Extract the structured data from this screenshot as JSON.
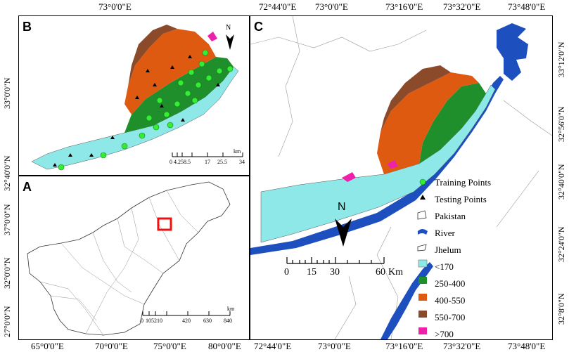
{
  "panels": {
    "a": {
      "label": "A",
      "top_axis": [],
      "bottom_axis": [
        "65°0'0\"E",
        "70°0'0\"E",
        "75°0'0\"E",
        "80°0'0\"E"
      ],
      "left_axis": [
        "37°0'0\"N",
        "32°0'0\"N",
        "27°0'0\"N"
      ],
      "scale_ticks": [
        "0",
        "105",
        "210",
        "420",
        "630",
        "840"
      ],
      "scale_unit": "km"
    },
    "b": {
      "label": "B",
      "top_axis": [
        "73°0'0\"E"
      ],
      "left_axis": [
        "33°0'0\"N",
        "32°40'0\"N"
      ],
      "scale_ticks": [
        "0",
        "4.25",
        "8.5",
        "17",
        "25.5",
        "34"
      ],
      "scale_unit": "km",
      "north": "N"
    },
    "c": {
      "label": "C",
      "top_axis": [
        "72°44'0\"E",
        "73°0'0\"E",
        "73°16'0\"E",
        "73°32'0\"E",
        "73°48'0\"E"
      ],
      "bottom_axis": [
        "72°44'0\"E",
        "73°0'0\"E",
        "73°16'0\"E",
        "73°32'0\"E",
        "73°48'0\"E"
      ],
      "right_axis": [
        "33°12'0\"N",
        "32°56'0\"N",
        "32°40'0\"N",
        "32°24'0\"N",
        "32°8'0\"N"
      ],
      "scale_ticks": [
        "0",
        "15",
        "30",
        "60"
      ],
      "scale_unit": "Km",
      "north": "N"
    }
  },
  "legend": [
    {
      "label": "Training Points",
      "icon": "green-circle-icon",
      "color": "#33ee33"
    },
    {
      "label": "Testing Points",
      "icon": "black-triangle-icon",
      "color": "#000000"
    },
    {
      "label": "Pakistan",
      "icon": "outline-polygon-icon",
      "color": "#ffffff"
    },
    {
      "label": "River",
      "icon": "river-icon",
      "color": "#1d4fbf"
    },
    {
      "label": "Jhelum",
      "icon": "outline-polygon-icon",
      "color": "#ffffff"
    },
    {
      "label": "<170",
      "icon": "swatch-icon",
      "color": "#8fe8e8"
    },
    {
      "label": "250-400",
      "icon": "swatch-icon",
      "color": "#1e8f2a"
    },
    {
      "label": "400-550",
      "icon": "swatch-icon",
      "color": "#dd5a10"
    },
    {
      "label": "550-700",
      "icon": "swatch-icon",
      "color": "#8b4a2a"
    },
    {
      "label": ">700",
      "icon": "swatch-icon",
      "color": "#ee22aa"
    }
  ]
}
